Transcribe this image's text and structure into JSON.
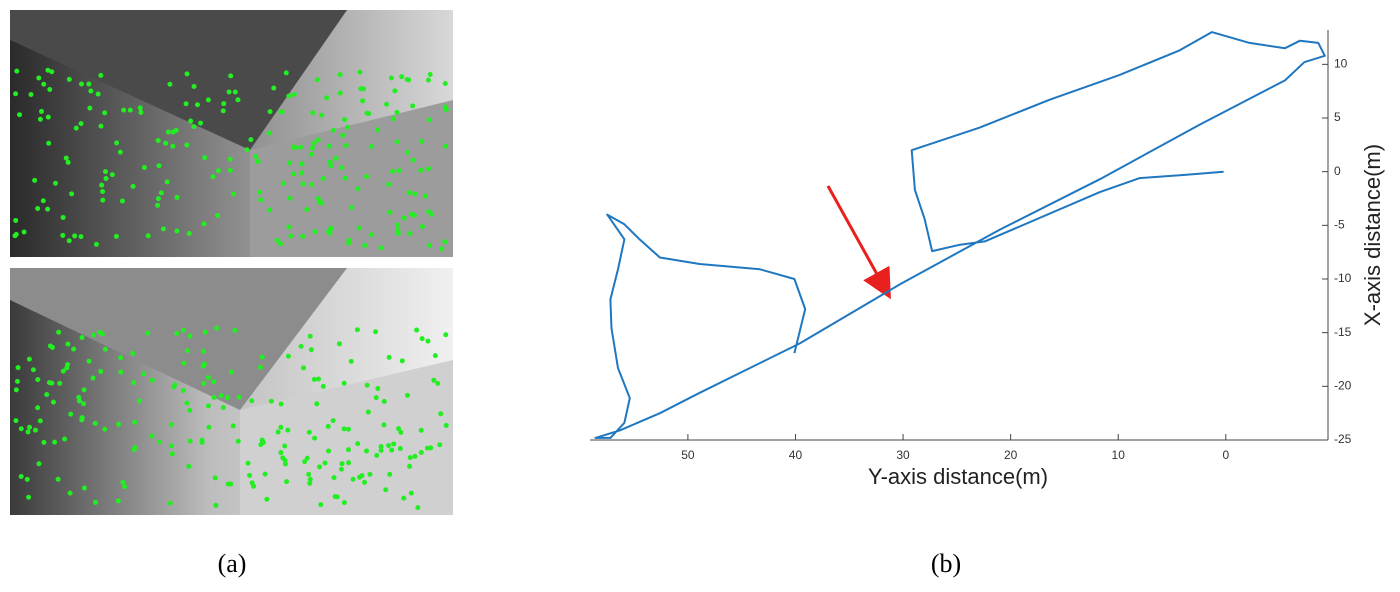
{
  "chart_data": {
    "type": "line",
    "x_label": "Y-axis distance(m)",
    "y_label": "X-axis distance(m)",
    "color": "#1f77c0",
    "xlim": [
      59.1,
      -9.5
    ],
    "ylim": [
      -25,
      13.2
    ],
    "xticks": [
      50,
      40,
      30,
      20,
      10,
      0
    ],
    "yticks": [
      10,
      5,
      0,
      -5,
      -10,
      -15,
      -20,
      -25
    ],
    "x": [
      0.2,
      3.8,
      8.0,
      11.7,
      22.4,
      24.7,
      27.3,
      28.0,
      28.9,
      29.2,
      22.9,
      16.4,
      9.9,
      4.3,
      1.3,
      -2.2,
      -5.5,
      -6.9,
      -8.6,
      -9.2,
      -7.3,
      -5.5,
      2.4,
      11.7,
      21.0,
      30.3,
      39.6,
      48.9,
      52.6,
      56.3,
      58.6,
      57.2,
      55.9,
      55.4,
      56.5,
      57.1,
      57.2,
      56.5,
      55.9,
      57.5,
      55.9,
      54.5,
      52.6,
      48.9,
      43.3,
      40.1,
      39.1,
      40.1
    ],
    "values": [
      0,
      -0.3,
      -0.6,
      -1.9,
      -6.5,
      -6.8,
      -7.4,
      -4.4,
      -1.7,
      2.0,
      4.1,
      6.7,
      9.0,
      11.3,
      13.0,
      12.0,
      11.5,
      12.2,
      12.0,
      10.8,
      10.2,
      8.5,
      4.4,
      -0.7,
      -5.4,
      -10.5,
      -16.0,
      -20.6,
      -22.5,
      -24.1,
      -24.8,
      -24.8,
      -23.4,
      -21.1,
      -18.3,
      -14.6,
      -11.9,
      -9.1,
      -6.3,
      -4.0,
      -4.9,
      -6.3,
      -8.0,
      -8.6,
      -9.1,
      -10.0,
      -12.8,
      -16.9
    ]
  },
  "captions": [
    "(a)",
    "(b)"
  ]
}
